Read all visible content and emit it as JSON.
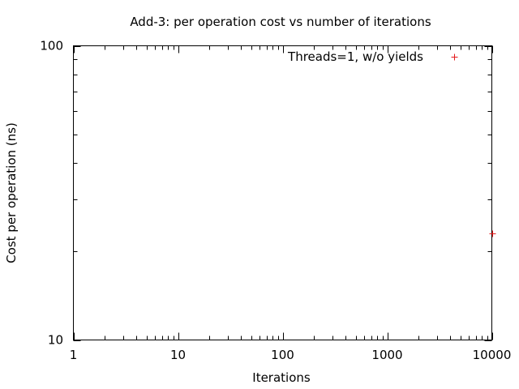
{
  "chart_data": {
    "type": "scatter",
    "title": "Add-3: per operation cost vs number of iterations",
    "xlabel": "Iterations",
    "ylabel": "Cost per operation (ns)",
    "x_scale": "log",
    "y_scale": "log",
    "xlim": [
      1,
      10000
    ],
    "ylim": [
      10,
      100
    ],
    "x_ticks": [
      {
        "value": 1,
        "label": "1"
      },
      {
        "value": 10,
        "label": "10"
      },
      {
        "value": 100,
        "label": "100"
      },
      {
        "value": 1000,
        "label": "1000"
      },
      {
        "value": 10000,
        "label": "10000"
      }
    ],
    "y_ticks": [
      {
        "value": 10,
        "label": "10"
      },
      {
        "value": 100,
        "label": "100"
      }
    ],
    "grid": false,
    "legend_position": "top-right",
    "series": [
      {
        "name": "Threads=1, w/o yields",
        "color": "#e41a1c",
        "marker": "plus",
        "points": [
          {
            "x": 10000,
            "y": 23
          }
        ]
      }
    ]
  }
}
